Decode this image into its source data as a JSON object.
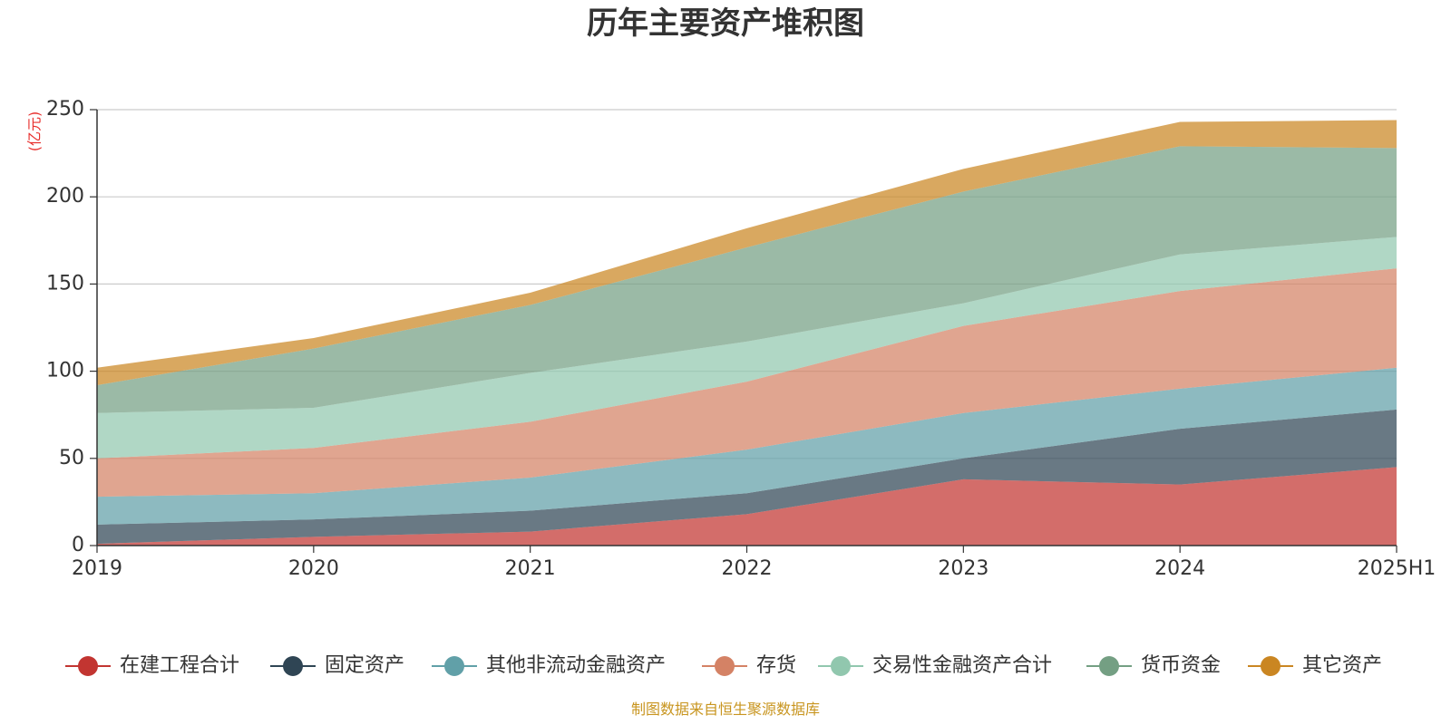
{
  "chart_data": {
    "type": "area",
    "stacked": true,
    "title": "历年主要资产堆积图",
    "unit_label": "(亿元)",
    "categories": [
      "2019",
      "2020",
      "2021",
      "2022",
      "2023",
      "2024",
      "2025H1"
    ],
    "ylim": [
      0,
      250
    ],
    "yticks": [
      0,
      50,
      100,
      150,
      200,
      250
    ],
    "grid": true,
    "legend_position": "bottom",
    "series": [
      {
        "name": "在建工程合计",
        "color": "#c23531",
        "values": [
          1,
          5,
          8,
          18,
          38,
          35,
          45
        ]
      },
      {
        "name": "固定资产",
        "color": "#2f4554",
        "values": [
          11,
          10,
          12,
          12,
          12,
          32,
          33
        ]
      },
      {
        "name": "其他非流动金融资产",
        "color": "#61a0a8",
        "values": [
          16,
          15,
          19,
          25,
          26,
          23,
          24
        ]
      },
      {
        "name": "存货",
        "color": "#d48265",
        "values": [
          22,
          26,
          32,
          39,
          50,
          56,
          57
        ]
      },
      {
        "name": "交易性金融资产合计",
        "color": "#91c7ae",
        "values": [
          26,
          23,
          28,
          23,
          13,
          21,
          18
        ]
      },
      {
        "name": "货币资金",
        "color": "#749f83",
        "values": [
          16,
          34,
          39,
          54,
          64,
          62,
          51
        ]
      },
      {
        "name": "其它资产",
        "color": "#ca8622",
        "values": [
          10,
          6,
          7,
          11,
          13,
          14,
          16
        ]
      }
    ],
    "source_note": "制图数据来自恒生聚源数据库"
  }
}
